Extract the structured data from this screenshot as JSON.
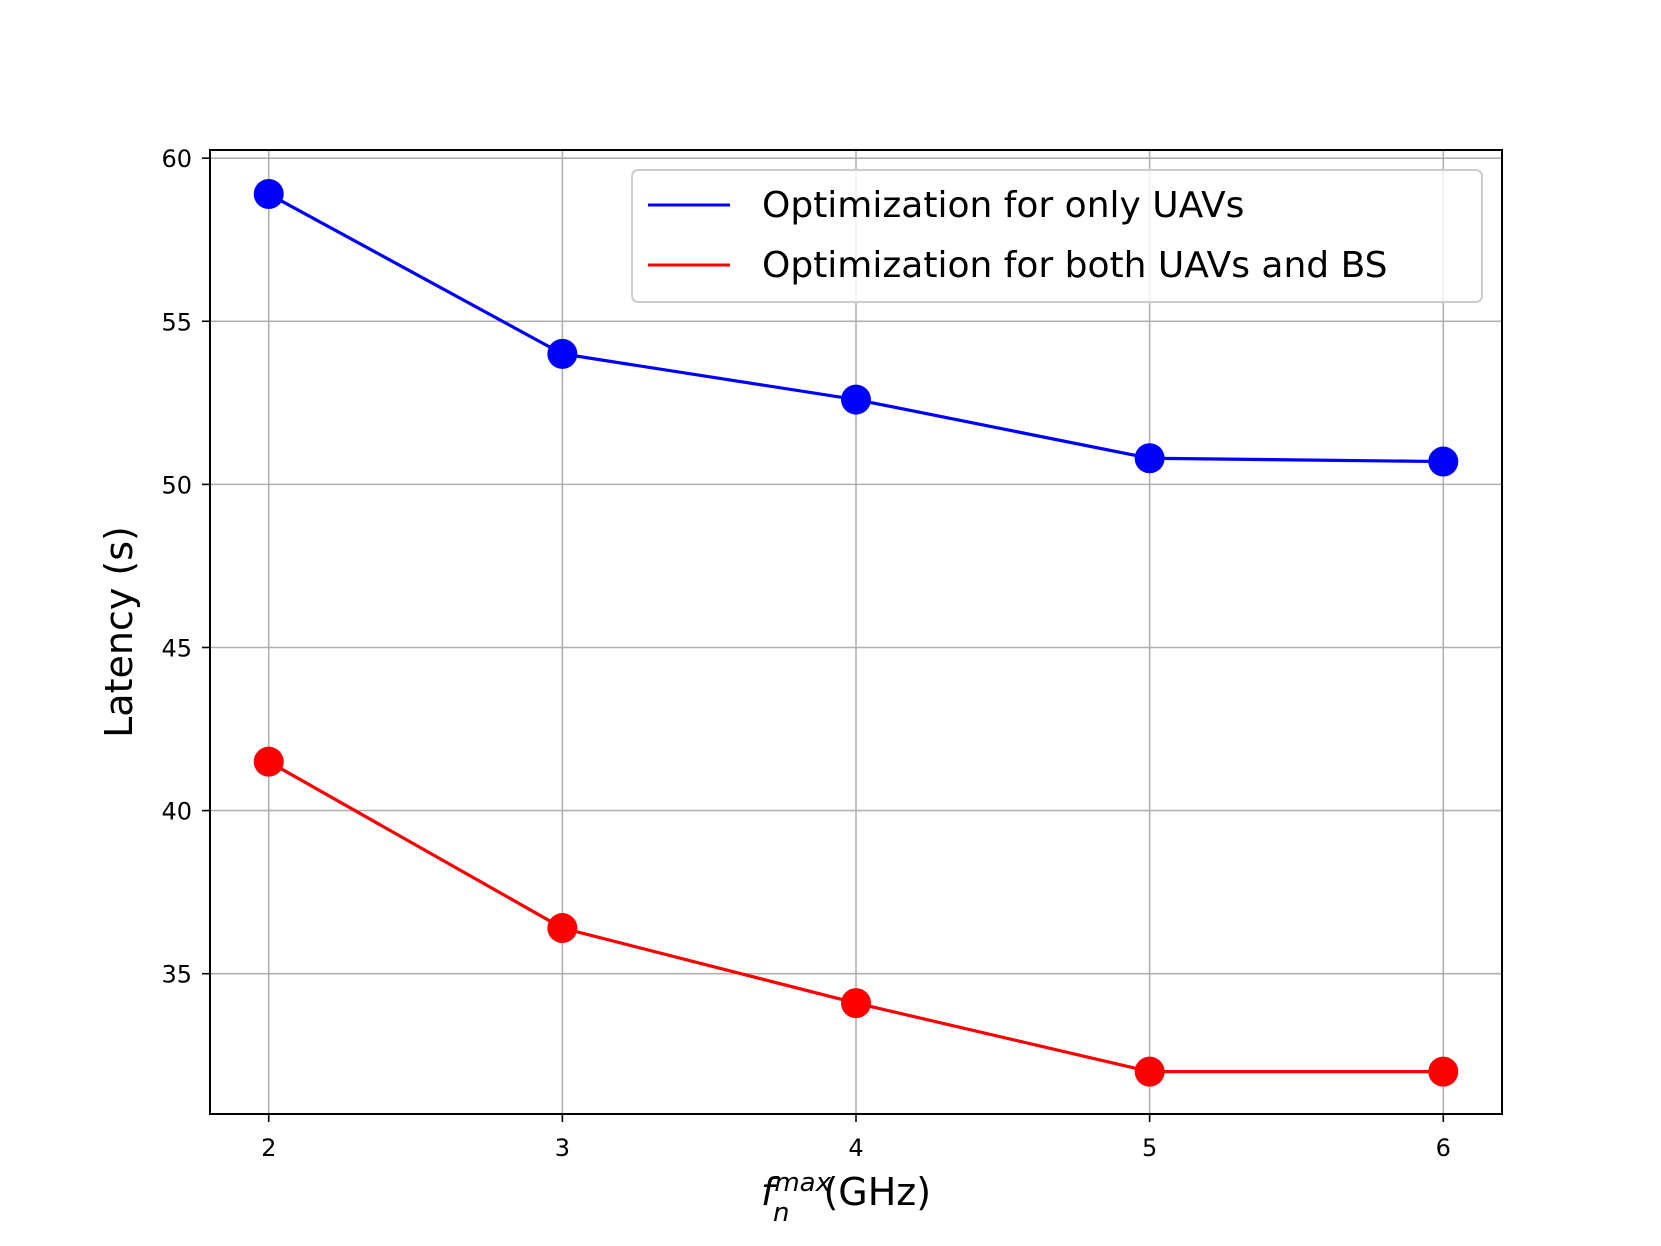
{
  "chart_data": {
    "type": "line",
    "title": "",
    "xlabel": {
      "symbol": "f",
      "subscript": "n",
      "superscript": "max",
      "unit": "(GHz)"
    },
    "ylabel": "Latency (s)",
    "x": [
      2,
      3,
      4,
      5,
      6
    ],
    "xticks": [
      "2",
      "3",
      "4",
      "5",
      "6"
    ],
    "yticks": [
      "35",
      "40",
      "45",
      "50",
      "55",
      "60"
    ],
    "xlim": [
      1.8,
      6.2
    ],
    "ylim": [
      30.7,
      60.25
    ],
    "grid": true,
    "legend_position": "top-right",
    "series": [
      {
        "name": "Optimization for only UAVs",
        "color": "#0000ff",
        "values": [
          58.9,
          54.0,
          52.6,
          50.8,
          50.7
        ]
      },
      {
        "name": "Optimization for both UAVs and BS",
        "color": "#ff0000",
        "values": [
          41.5,
          36.4,
          34.1,
          32.0,
          32.0
        ]
      }
    ]
  }
}
